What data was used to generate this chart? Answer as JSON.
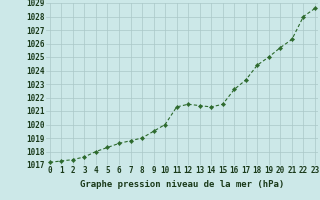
{
  "x": [
    0,
    1,
    2,
    3,
    4,
    5,
    6,
    7,
    8,
    9,
    10,
    11,
    12,
    13,
    14,
    15,
    16,
    17,
    18,
    19,
    20,
    21,
    22,
    23
  ],
  "y": [
    1017.2,
    1017.3,
    1017.4,
    1017.6,
    1018.0,
    1018.3,
    1018.6,
    1018.8,
    1019.0,
    1019.5,
    1020.0,
    1021.3,
    1021.5,
    1021.4,
    1021.3,
    1021.5,
    1022.6,
    1023.3,
    1024.4,
    1025.0,
    1025.7,
    1026.3,
    1028.0,
    1028.6
  ],
  "line_color": "#2d6a2d",
  "marker": "D",
  "marker_size": 2.2,
  "bg_color": "#cce8e8",
  "grid_color": "#aac8c8",
  "title": "Graphe pression niveau de la mer (hPa)",
  "ylim": [
    1017,
    1029
  ],
  "xlim": [
    0,
    23
  ],
  "yticks": [
    1017,
    1018,
    1019,
    1020,
    1021,
    1022,
    1023,
    1024,
    1025,
    1026,
    1027,
    1028,
    1029
  ],
  "xticks": [
    0,
    1,
    2,
    3,
    4,
    5,
    6,
    7,
    8,
    9,
    10,
    11,
    12,
    13,
    14,
    15,
    16,
    17,
    18,
    19,
    20,
    21,
    22,
    23
  ],
  "title_fontsize": 6.5,
  "tick_fontsize": 5.5,
  "title_color": "#1a3a1a",
  "tick_color": "#1a3a1a",
  "line_width": 0.8,
  "dash_pattern": [
    3,
    2
  ]
}
